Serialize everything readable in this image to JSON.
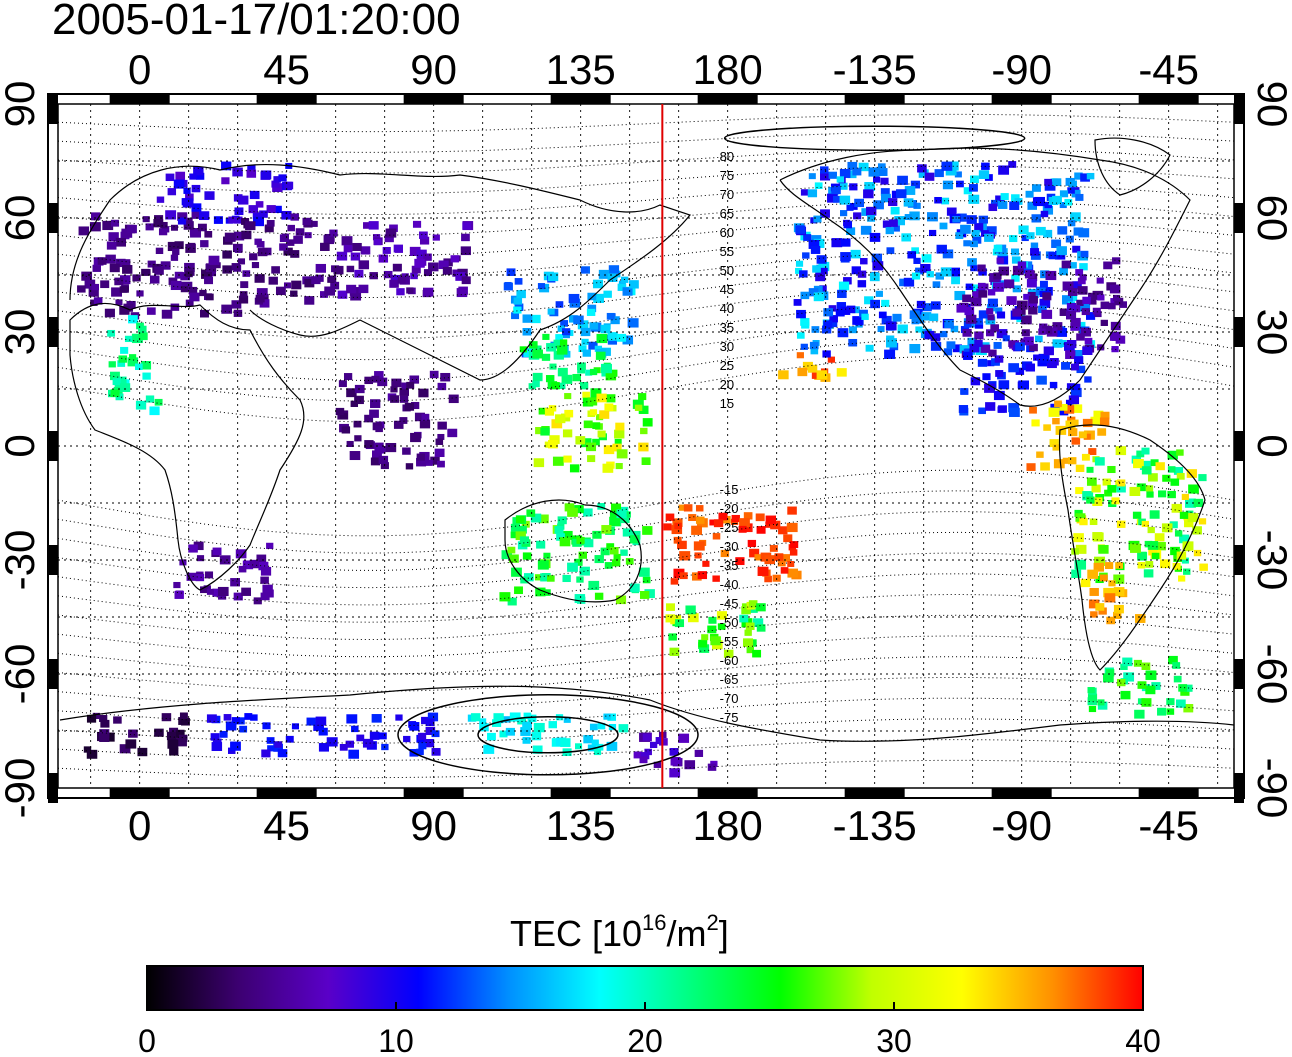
{
  "title": "2005-01-17/01:20:00",
  "map": {
    "lon_min": -25,
    "lon_max": 335,
    "lat_min": -90,
    "lat_max": 90,
    "top_lon_tick_labels": [
      "0",
      "45",
      "90",
      "135",
      "180",
      "-135",
      "-90",
      "-45"
    ],
    "bottom_lon_tick_labels": [
      "0",
      "45",
      "90",
      "135",
      "180",
      "-135",
      "-90",
      "-45"
    ],
    "lon_tick_values": [
      0,
      45,
      90,
      135,
      180,
      225,
      270,
      315
    ],
    "left_lat_tick_labels": [
      "90",
      "60",
      "30",
      "0",
      "-30",
      "-60",
      "-90"
    ],
    "right_lat_tick_labels": [
      "90",
      "60",
      "30",
      "0",
      "-30",
      "-60",
      "-90"
    ],
    "lat_tick_values": [
      90,
      60,
      30,
      0,
      -30,
      -60,
      -90
    ],
    "terminator_lon": 160,
    "terminator_color": "#e00000",
    "contour_labels_north": [
      "80",
      "75",
      "70",
      "65",
      "60",
      "55",
      "50",
      "45",
      "40",
      "35",
      "30",
      "25",
      "20",
      "15"
    ],
    "contour_labels_north_lat": [
      80,
      75,
      70,
      65,
      60,
      55,
      50,
      45,
      40,
      35,
      30,
      25,
      20,
      15
    ],
    "contour_labels_south": [
      "-15",
      "-20",
      "-25",
      "-30",
      "-35",
      "-40",
      "-45",
      "-50",
      "-55",
      "-60",
      "-65",
      "-70",
      "-75"
    ],
    "contour_labels_south_lat": [
      -15,
      -20,
      -25,
      -30,
      -35,
      -40,
      -45,
      -50,
      -55,
      -60,
      -65,
      -70,
      -75
    ]
  },
  "colorbar": {
    "label_main": "TEC  [10",
    "label_sup1": "16",
    "label_mid": "/m",
    "label_sup2": "2",
    "label_end": "]",
    "tick_labels": [
      "0",
      "10",
      "20",
      "30",
      "40"
    ],
    "tick_values": [
      0,
      10,
      20,
      30,
      40
    ],
    "min": 0,
    "max": 40,
    "colors": [
      "#000000",
      "#3c0070",
      "#5a00c8",
      "#0000ff",
      "#0090ff",
      "#00ffff",
      "#00ff80",
      "#00ff00",
      "#c0ff00",
      "#ffff00",
      "#ff9000",
      "#ff0000"
    ]
  },
  "tec_regions": [
    {
      "lon": [
        -20,
        30
      ],
      "lat": [
        35,
        62
      ],
      "tec": [
        3,
        6
      ]
    },
    {
      "lon": [
        5,
        45
      ],
      "lat": [
        60,
        75
      ],
      "tec": [
        7,
        11
      ]
    },
    {
      "lon": [
        30,
        60
      ],
      "lat": [
        38,
        62
      ],
      "tec": [
        3,
        6
      ]
    },
    {
      "lon": [
        60,
        100
      ],
      "lat": [
        40,
        60
      ],
      "tec": [
        4,
        8
      ]
    },
    {
      "lon": [
        110,
        150
      ],
      "lat": [
        25,
        48
      ],
      "tec": [
        12,
        18
      ]
    },
    {
      "lon": [
        115,
        145
      ],
      "lat": [
        15,
        30
      ],
      "tec": [
        20,
        26
      ]
    },
    {
      "lon": [
        120,
        155
      ],
      "lat": [
        -5,
        15
      ],
      "tec": [
        24,
        34
      ]
    },
    {
      "lon": [
        110,
        155
      ],
      "lat": [
        -40,
        -15
      ],
      "tec": [
        20,
        28
      ]
    },
    {
      "lon": [
        160,
        200
      ],
      "lat": [
        -35,
        -15
      ],
      "tec": [
        36,
        40
      ]
    },
    {
      "lon": [
        160,
        190
      ],
      "lat": [
        -55,
        -40
      ],
      "tec": [
        20,
        32
      ]
    },
    {
      "lon": [
        195,
        215
      ],
      "lat": [
        18,
        25
      ],
      "tec": [
        33,
        39
      ]
    },
    {
      "lon": [
        200,
        290
      ],
      "lat": [
        25,
        75
      ],
      "tec": [
        9,
        18
      ]
    },
    {
      "lon": [
        250,
        300
      ],
      "lat": [
        25,
        50
      ],
      "tec": [
        4,
        8
      ]
    },
    {
      "lon": [
        250,
        290
      ],
      "lat": [
        10,
        28
      ],
      "tec": [
        9,
        13
      ]
    },
    {
      "lon": [
        270,
        295
      ],
      "lat": [
        -5,
        12
      ],
      "tec": [
        32,
        38
      ]
    },
    {
      "lon": [
        285,
        325
      ],
      "lat": [
        -35,
        0
      ],
      "tec": [
        20,
        34
      ]
    },
    {
      "lon": [
        290,
        305
      ],
      "lat": [
        -45,
        -30
      ],
      "tec": [
        34,
        38
      ]
    },
    {
      "lon": [
        290,
        320
      ],
      "lat": [
        -70,
        -55
      ],
      "tec": [
        20,
        28
      ]
    },
    {
      "lon": [
        -20,
        15
      ],
      "lat": [
        -80,
        -70
      ],
      "tec": [
        1,
        4
      ]
    },
    {
      "lon": [
        20,
        90
      ],
      "lat": [
        -80,
        -70
      ],
      "tec": [
        9,
        12
      ]
    },
    {
      "lon": [
        100,
        150
      ],
      "lat": [
        -80,
        -70
      ],
      "tec": [
        16,
        20
      ]
    },
    {
      "lon": [
        150,
        175
      ],
      "lat": [
        -85,
        -75
      ],
      "tec": [
        5,
        9
      ]
    },
    {
      "lon": [
        60,
        95
      ],
      "lat": [
        -5,
        20
      ],
      "tec": [
        3,
        6
      ]
    },
    {
      "lon": [
        10,
        40
      ],
      "lat": [
        -40,
        -25
      ],
      "tec": [
        4,
        7
      ]
    },
    {
      "lon": [
        -10,
        5
      ],
      "lat": [
        10,
        35
      ],
      "tec": [
        18,
        24
      ]
    }
  ]
}
